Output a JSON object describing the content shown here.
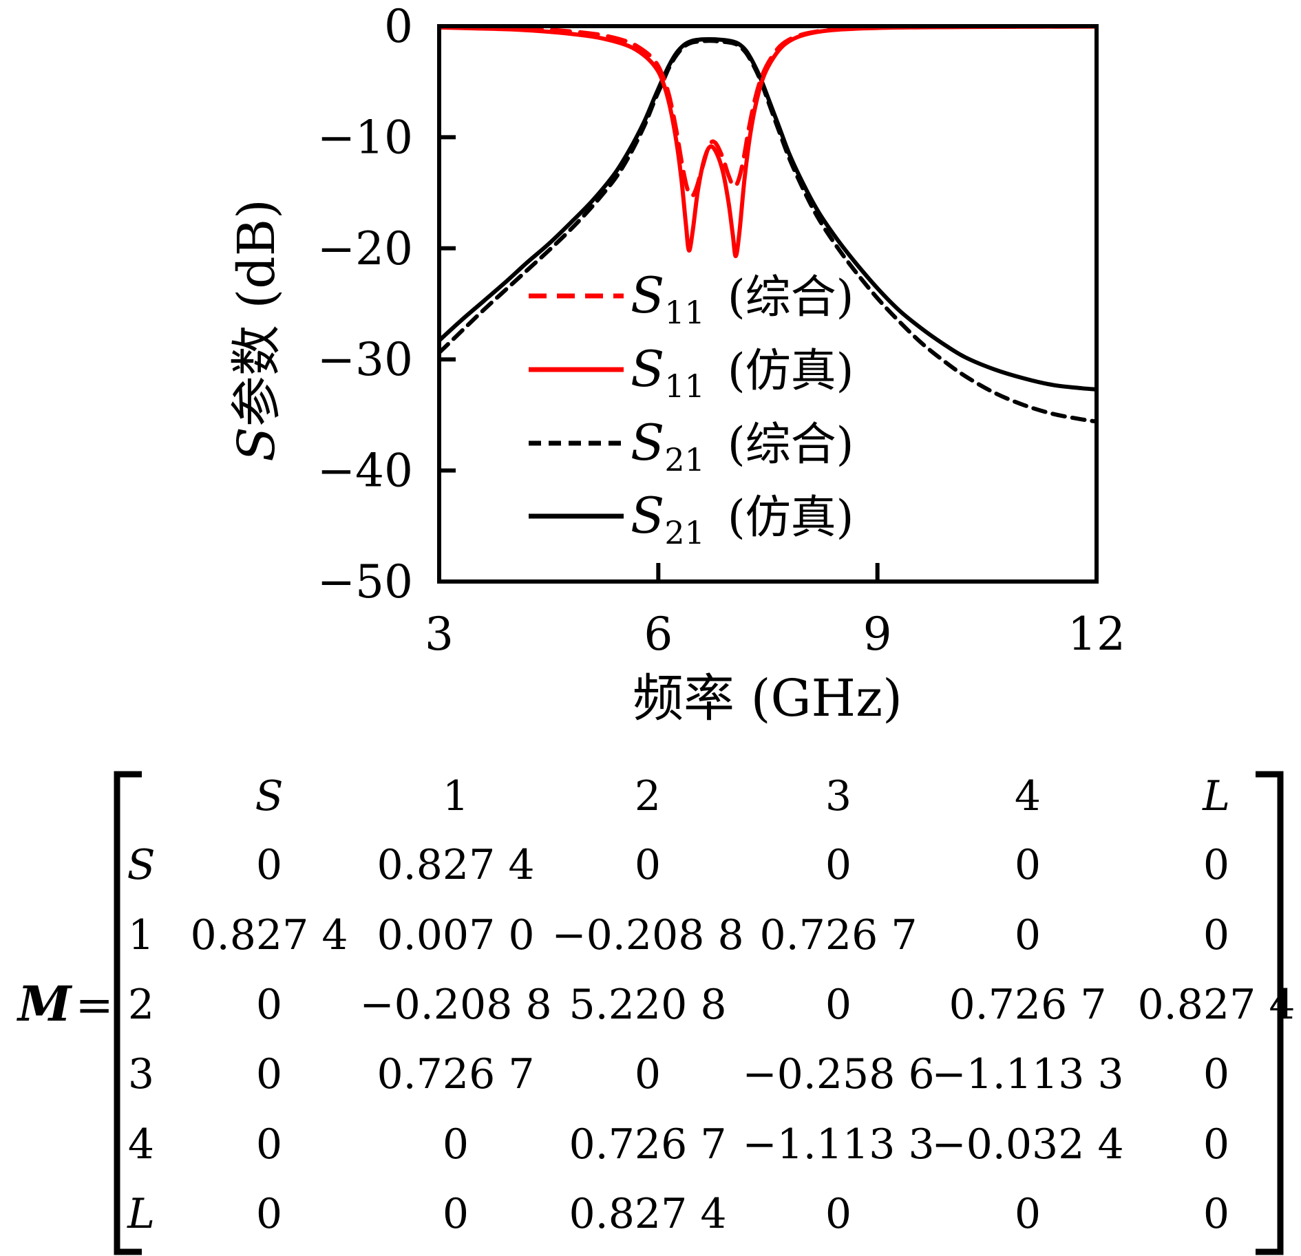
{
  "chart": {
    "y_title_prefix": "S",
    "y_title_suffix": "参数 (dB)",
    "x_title": "频率 (GHz)",
    "x_range": {
      "min": 3,
      "max": 12
    },
    "y_range": {
      "min": -50,
      "max": 0
    },
    "x_ticks": [
      {
        "label": "3",
        "ghz": 3,
        "mark": false
      },
      {
        "label": "6",
        "ghz": 6,
        "mark": true
      },
      {
        "label": "9",
        "ghz": 9,
        "mark": true
      },
      {
        "label": "12",
        "ghz": 12,
        "mark": false
      }
    ],
    "y_ticks": [
      {
        "label": "0",
        "db": 0,
        "mark": false
      },
      {
        "label": "−10",
        "db": -10,
        "mark": true
      },
      {
        "label": "−20",
        "db": -20,
        "mark": true
      },
      {
        "label": "−30",
        "db": -30,
        "mark": true
      },
      {
        "label": "−40",
        "db": -40,
        "mark": true
      },
      {
        "label": "−50",
        "db": -50,
        "mark": false
      }
    ],
    "colors": {
      "red": "#FF0000",
      "black": "#000000"
    },
    "legend": [
      {
        "series": "s11_syn",
        "base": "S",
        "sub": "11",
        "note": "(综合)",
        "color": "#FF0000",
        "dashed": true
      },
      {
        "series": "s11_sim",
        "base": "S",
        "sub": "11",
        "note": "(仿真)",
        "color": "#FF0000",
        "dashed": false
      },
      {
        "series": "s21_syn",
        "base": "S",
        "sub": "21",
        "note": "(综合)",
        "color": "#000000",
        "dashed": true
      },
      {
        "series": "s21_sim",
        "base": "S",
        "sub": "21",
        "note": "(仿真)",
        "color": "#000000",
        "dashed": false
      }
    ]
  },
  "chart_data": {
    "type": "line",
    "title": "",
    "xlabel": "频率 (GHz)",
    "ylabel": "S参数 (dB)",
    "xlim": [
      3,
      12
    ],
    "ylim": [
      -50,
      0
    ],
    "grid": false,
    "legend_position": "inside-lower-left",
    "series": [
      {
        "id": "s21_syn",
        "name": "S21 (综合)",
        "color": "#000000",
        "style": "dashed",
        "points": [
          [
            3,
            -29.4
          ],
          [
            3.3,
            -27.5
          ],
          [
            3.6,
            -25.6
          ],
          [
            3.9,
            -23.8
          ],
          [
            4.2,
            -22.0
          ],
          [
            4.5,
            -20.2
          ],
          [
            4.8,
            -18.3
          ],
          [
            5.1,
            -16.2
          ],
          [
            5.4,
            -13.8
          ],
          [
            5.6,
            -11.7
          ],
          [
            5.8,
            -9.1
          ],
          [
            5.95,
            -6.7
          ],
          [
            6.05,
            -5.2
          ],
          [
            6.15,
            -3.7
          ],
          [
            6.25,
            -2.6
          ],
          [
            6.35,
            -1.85
          ],
          [
            6.45,
            -1.5
          ],
          [
            6.55,
            -1.38
          ],
          [
            6.7,
            -1.32
          ],
          [
            6.85,
            -1.38
          ],
          [
            7.0,
            -1.5
          ],
          [
            7.1,
            -1.75
          ],
          [
            7.2,
            -2.4
          ],
          [
            7.3,
            -3.5
          ],
          [
            7.4,
            -4.9
          ],
          [
            7.5,
            -6.7
          ],
          [
            7.65,
            -9.4
          ],
          [
            7.8,
            -12.0
          ],
          [
            8.0,
            -14.9
          ],
          [
            8.2,
            -17.4
          ],
          [
            8.45,
            -19.9
          ],
          [
            8.7,
            -22.1
          ],
          [
            9.0,
            -24.5
          ],
          [
            9.3,
            -26.6
          ],
          [
            9.6,
            -28.5
          ],
          [
            9.9,
            -30.1
          ],
          [
            10.2,
            -31.5
          ],
          [
            10.6,
            -33.0
          ],
          [
            11.0,
            -34.1
          ],
          [
            11.4,
            -34.9
          ],
          [
            11.8,
            -35.4
          ],
          [
            12,
            -35.6
          ]
        ]
      },
      {
        "id": "s21_sim",
        "name": "S21 (仿真)",
        "color": "#000000",
        "style": "solid",
        "points": [
          [
            3,
            -28.3
          ],
          [
            3.3,
            -26.5
          ],
          [
            3.6,
            -24.8
          ],
          [
            3.9,
            -23.1
          ],
          [
            4.2,
            -21.3
          ],
          [
            4.5,
            -19.6
          ],
          [
            4.8,
            -17.7
          ],
          [
            5.1,
            -15.7
          ],
          [
            5.4,
            -13.3
          ],
          [
            5.6,
            -11.2
          ],
          [
            5.8,
            -8.7
          ],
          [
            5.95,
            -6.4
          ],
          [
            6.05,
            -4.9
          ],
          [
            6.15,
            -3.5
          ],
          [
            6.25,
            -2.4
          ],
          [
            6.35,
            -1.7
          ],
          [
            6.45,
            -1.35
          ],
          [
            6.55,
            -1.22
          ],
          [
            6.7,
            -1.18
          ],
          [
            6.85,
            -1.22
          ],
          [
            7.0,
            -1.35
          ],
          [
            7.1,
            -1.6
          ],
          [
            7.2,
            -2.2
          ],
          [
            7.3,
            -3.3
          ],
          [
            7.4,
            -4.7
          ],
          [
            7.5,
            -6.4
          ],
          [
            7.65,
            -9.0
          ],
          [
            7.8,
            -11.6
          ],
          [
            8.0,
            -14.4
          ],
          [
            8.2,
            -16.8
          ],
          [
            8.45,
            -19.2
          ],
          [
            8.7,
            -21.3
          ],
          [
            9.0,
            -23.6
          ],
          [
            9.3,
            -25.6
          ],
          [
            9.6,
            -27.2
          ],
          [
            9.9,
            -28.6
          ],
          [
            10.2,
            -29.8
          ],
          [
            10.6,
            -30.9
          ],
          [
            11.0,
            -31.7
          ],
          [
            11.4,
            -32.3
          ],
          [
            11.8,
            -32.6
          ],
          [
            12,
            -32.7
          ]
        ]
      },
      {
        "id": "s11_syn",
        "name": "S11 (综合)",
        "color": "#FF0000",
        "style": "dashed",
        "points": [
          [
            3,
            -0.06
          ],
          [
            3.5,
            -0.1
          ],
          [
            4,
            -0.18
          ],
          [
            4.5,
            -0.32
          ],
          [
            5,
            -0.6
          ],
          [
            5.3,
            -0.9
          ],
          [
            5.6,
            -1.45
          ],
          [
            5.8,
            -2.2
          ],
          [
            5.95,
            -3.1
          ],
          [
            6.05,
            -4.3
          ],
          [
            6.15,
            -6.3
          ],
          [
            6.25,
            -9.5
          ],
          [
            6.33,
            -12.6
          ],
          [
            6.4,
            -14.7
          ],
          [
            6.46,
            -15.3
          ],
          [
            6.52,
            -14.6
          ],
          [
            6.6,
            -12.8
          ],
          [
            6.7,
            -10.7
          ],
          [
            6.78,
            -10.5
          ],
          [
            6.88,
            -11.8
          ],
          [
            6.96,
            -13.4
          ],
          [
            7.03,
            -14.4
          ],
          [
            7.09,
            -14.0
          ],
          [
            7.16,
            -12.2
          ],
          [
            7.24,
            -9.2
          ],
          [
            7.33,
            -6.4
          ],
          [
            7.43,
            -4.3
          ],
          [
            7.56,
            -2.7
          ],
          [
            7.7,
            -1.6
          ],
          [
            7.9,
            -0.9
          ],
          [
            8.15,
            -0.5
          ],
          [
            8.5,
            -0.27
          ],
          [
            9,
            -0.14
          ],
          [
            9.6,
            -0.09
          ],
          [
            10.4,
            -0.06
          ],
          [
            11.2,
            -0.04
          ],
          [
            12,
            -0.03
          ]
        ]
      },
      {
        "id": "s11_sim",
        "name": "S11 (仿真)",
        "color": "#FF0000",
        "style": "solid",
        "points": [
          [
            3,
            -0.12
          ],
          [
            3.5,
            -0.2
          ],
          [
            4,
            -0.3
          ],
          [
            4.5,
            -0.5
          ],
          [
            5,
            -0.85
          ],
          [
            5.3,
            -1.2
          ],
          [
            5.6,
            -1.8
          ],
          [
            5.8,
            -2.6
          ],
          [
            5.95,
            -3.6
          ],
          [
            6.05,
            -4.8
          ],
          [
            6.15,
            -7.0
          ],
          [
            6.25,
            -10.5
          ],
          [
            6.32,
            -14.0
          ],
          [
            6.38,
            -18.0
          ],
          [
            6.42,
            -20.2
          ],
          [
            6.47,
            -18.5
          ],
          [
            6.54,
            -14.9
          ],
          [
            6.62,
            -12.2
          ],
          [
            6.7,
            -10.9
          ],
          [
            6.78,
            -11.2
          ],
          [
            6.88,
            -13.0
          ],
          [
            6.96,
            -15.8
          ],
          [
            7.02,
            -18.8
          ],
          [
            7.06,
            -20.7
          ],
          [
            7.11,
            -18.6
          ],
          [
            7.18,
            -13.8
          ],
          [
            7.26,
            -9.7
          ],
          [
            7.35,
            -6.6
          ],
          [
            7.45,
            -4.4
          ],
          [
            7.58,
            -2.8
          ],
          [
            7.72,
            -1.7
          ],
          [
            7.9,
            -1.0
          ],
          [
            8.15,
            -0.55
          ],
          [
            8.5,
            -0.3
          ],
          [
            9,
            -0.16
          ],
          [
            9.6,
            -0.1
          ],
          [
            10.4,
            -0.07
          ],
          [
            11.2,
            -0.05
          ],
          [
            12,
            -0.04
          ]
        ]
      }
    ]
  },
  "matrix": {
    "name": "M",
    "equals": "=",
    "col_headers": [
      "S",
      "1",
      "2",
      "3",
      "4",
      "L"
    ],
    "row_headers": [
      "S",
      "1",
      "2",
      "3",
      "4",
      "L"
    ],
    "values": [
      [
        "0",
        "0.827 4",
        "0",
        "0",
        "0",
        "0"
      ],
      [
        "0.827 4",
        "0.007 0",
        "−0.208 8",
        "0.726 7",
        "0",
        "0"
      ],
      [
        "0",
        "−0.208 8",
        "5.220 8",
        "0",
        "0.726 7",
        "0.827 4"
      ],
      [
        "0",
        "0.726 7",
        "0",
        "−0.258 6",
        "−1.113 3",
        "0"
      ],
      [
        "0",
        "0",
        "0.726 7",
        "−1.113 3",
        "−0.032 4",
        "0"
      ],
      [
        "0",
        "0",
        "0.827 4",
        "0",
        "0",
        "0"
      ]
    ]
  }
}
